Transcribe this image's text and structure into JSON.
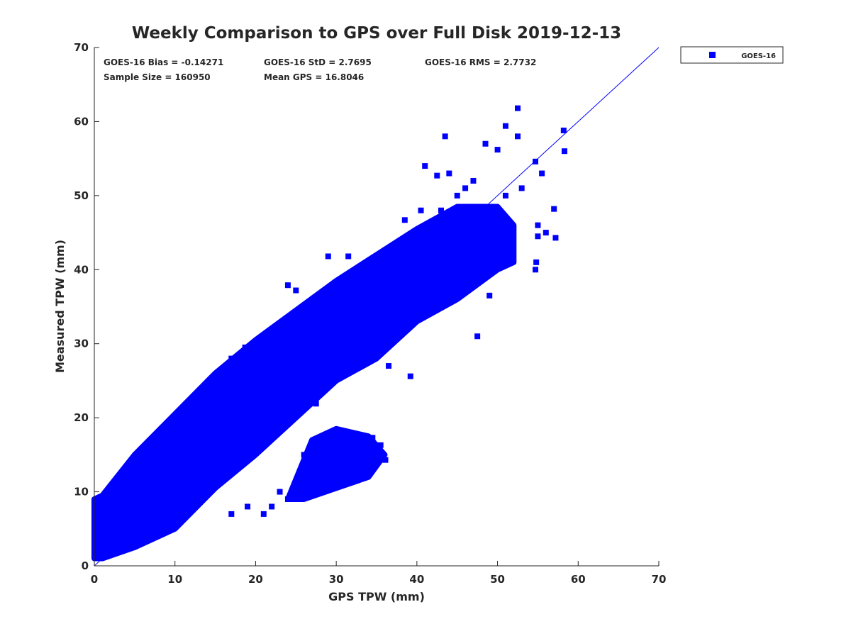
{
  "chart_data": {
    "type": "scatter",
    "title": "Weekly Comparison to GPS over Full Disk 2019-12-13",
    "xlabel": "GPS TPW (mm)",
    "ylabel": "Measured TPW (mm)",
    "xlim": [
      0,
      70
    ],
    "ylim": [
      0,
      70
    ],
    "xticks": [
      0,
      10,
      20,
      30,
      40,
      50,
      60,
      70
    ],
    "yticks": [
      0,
      10,
      20,
      30,
      40,
      50,
      60,
      70
    ],
    "grid": false,
    "legend": {
      "placement": "outside-top-right",
      "entries": [
        "GOES-16"
      ]
    },
    "series_color": "#0000ff",
    "stats": [
      "GOES-16 Bias = -0.14271",
      "GOES-16 StD = 2.7695",
      "GOES-16 RMS = 2.7732",
      "Sample Size = 160950",
      "Mean GPS = 16.8046"
    ],
    "reference_line": {
      "slope": 1,
      "intercept": 0
    },
    "dense_region_outline": [
      [
        0,
        1
      ],
      [
        0,
        9
      ],
      [
        1,
        9.5
      ],
      [
        5,
        15
      ],
      [
        10,
        20.5
      ],
      [
        15,
        26
      ],
      [
        20,
        30.5
      ],
      [
        25,
        34.5
      ],
      [
        30,
        38.5
      ],
      [
        35,
        42
      ],
      [
        40,
        45.5
      ],
      [
        45,
        48.5
      ],
      [
        50,
        48.5
      ],
      [
        52,
        46
      ],
      [
        52,
        41
      ],
      [
        50,
        40
      ],
      [
        45,
        36
      ],
      [
        40,
        33
      ],
      [
        35,
        28
      ],
      [
        30,
        25
      ],
      [
        25,
        20
      ],
      [
        20,
        15
      ],
      [
        15,
        10.5
      ],
      [
        10,
        5
      ],
      [
        5,
        2.5
      ],
      [
        1,
        1
      ]
    ],
    "dense_lobe_outline": [
      [
        24,
        9
      ],
      [
        27,
        17
      ],
      [
        30,
        18.5
      ],
      [
        34,
        17.5
      ],
      [
        36,
        15
      ],
      [
        34,
        12
      ],
      [
        30,
        10.5
      ],
      [
        26,
        9
      ]
    ],
    "points": [
      [
        52.5,
        61.8
      ],
      [
        43.5,
        58
      ],
      [
        51,
        59.4
      ],
      [
        58.2,
        58.8
      ],
      [
        58.3,
        56
      ],
      [
        52.5,
        58
      ],
      [
        48.5,
        57
      ],
      [
        50,
        56.2
      ],
      [
        54.7,
        54.6
      ],
      [
        55.5,
        53
      ],
      [
        41,
        54
      ],
      [
        44,
        53
      ],
      [
        42.5,
        52.7
      ],
      [
        57,
        48.2
      ],
      [
        57.2,
        44.3
      ],
      [
        55,
        44.5
      ],
      [
        54.7,
        40
      ],
      [
        54.8,
        41
      ],
      [
        49,
        36.5
      ],
      [
        47.5,
        31
      ],
      [
        34,
        31.8
      ],
      [
        39.2,
        25.6
      ],
      [
        37,
        30.8
      ],
      [
        36.5,
        27
      ],
      [
        19,
        29
      ],
      [
        18.7,
        29.5
      ],
      [
        17,
        28
      ],
      [
        13,
        23
      ],
      [
        11.5,
        20.8
      ],
      [
        10,
        18.6
      ],
      [
        5,
        13
      ],
      [
        33,
        29
      ],
      [
        29,
        24.6
      ],
      [
        27.5,
        21.9
      ],
      [
        34.5,
        17.3
      ],
      [
        35.5,
        16.3
      ],
      [
        36.1,
        14.3
      ],
      [
        33.5,
        16.5
      ],
      [
        31,
        16
      ],
      [
        30,
        13.5
      ],
      [
        31,
        11
      ],
      [
        32,
        14
      ],
      [
        26,
        15
      ],
      [
        27,
        12
      ],
      [
        23,
        10
      ],
      [
        24,
        9
      ],
      [
        28,
        11
      ],
      [
        29.3,
        10.6
      ],
      [
        25.5,
        12.4
      ],
      [
        30.9,
        11.4
      ],
      [
        26.2,
        12
      ],
      [
        39,
        34
      ],
      [
        42,
        36
      ],
      [
        31.5,
        41.8
      ],
      [
        29,
        41.8
      ],
      [
        24,
        37.9
      ],
      [
        25,
        37.2
      ],
      [
        41.5,
        46
      ],
      [
        43,
        48
      ],
      [
        38.5,
        46.7
      ],
      [
        40.5,
        48
      ],
      [
        46,
        51
      ],
      [
        47,
        52
      ],
      [
        45,
        50
      ],
      [
        53,
        51
      ],
      [
        51,
        50
      ],
      [
        55,
        46
      ],
      [
        56,
        45
      ],
      [
        22,
        8
      ],
      [
        21,
        7
      ],
      [
        19,
        8
      ],
      [
        17,
        7
      ],
      [
        8,
        17
      ],
      [
        6,
        14
      ],
      [
        3,
        11
      ],
      [
        1,
        4
      ],
      [
        0.5,
        3
      ]
    ]
  }
}
